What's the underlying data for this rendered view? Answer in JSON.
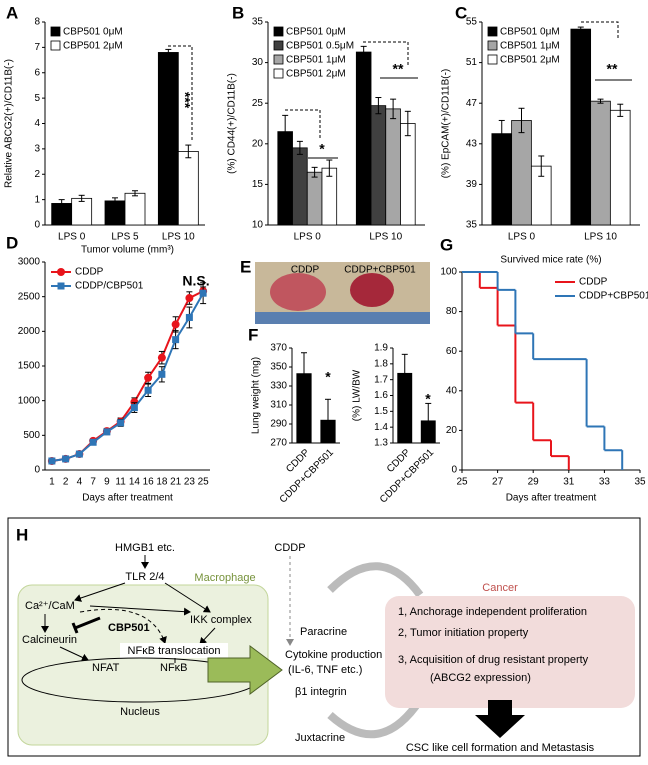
{
  "chart_data": [
    {
      "panel": "A",
      "type": "bar",
      "y_label": "Relative ABCG2(+)/CD11B(-)",
      "categories": [
        "LPS 0",
        "LPS 5",
        "LPS 10"
      ],
      "series": [
        {
          "name": "CBP501 0μM",
          "color": "#000000",
          "values": [
            0.85,
            0.95,
            6.8
          ],
          "errors": [
            0.15,
            0.12,
            0.12
          ]
        },
        {
          "name": "CBP501 2μM",
          "color": "#ffffff",
          "values": [
            1.05,
            1.25,
            2.9
          ],
          "errors": [
            0.12,
            0.1,
            0.25
          ]
        }
      ],
      "ylim": [
        0,
        8
      ],
      "yticks": [
        0,
        1,
        2,
        3,
        4,
        5,
        6,
        7,
        8
      ],
      "legend": "upper left",
      "annotations": [
        "***"
      ]
    },
    {
      "panel": "B",
      "type": "bar",
      "y_label": "(%) CD44(+)/CD11B(-)",
      "categories": [
        "LPS 0",
        "LPS 10"
      ],
      "series": [
        {
          "name": "CBP501 0μM",
          "color": "#000000",
          "values": [
            21.5,
            31.3
          ],
          "errors": [
            2.0,
            0.7
          ]
        },
        {
          "name": "CBP501 0.5μM",
          "color": "#404040",
          "values": [
            19.5,
            24.7
          ],
          "errors": [
            0.8,
            1.0
          ]
        },
        {
          "name": "CBP501 1μM",
          "color": "#a6a6a6",
          "values": [
            16.5,
            24.3
          ],
          "errors": [
            0.6,
            1.2
          ]
        },
        {
          "name": "CBP501 2μM",
          "color": "#ffffff",
          "values": [
            17.0,
            22.5
          ],
          "errors": [
            1.0,
            1.5
          ]
        }
      ],
      "ylim": [
        10,
        35
      ],
      "yticks": [
        10,
        15,
        20,
        25,
        30,
        35
      ],
      "legend": "upper left",
      "annotations": [
        "*",
        "**"
      ]
    },
    {
      "panel": "C",
      "type": "bar",
      "y_label": "(%) EpCAM(+)/CD11B(-)",
      "categories": [
        "LPS 0",
        "LPS 10"
      ],
      "series": [
        {
          "name": "CBP501 0μM",
          "color": "#000000",
          "values": [
            44.0,
            54.3
          ],
          "errors": [
            1.3,
            0.2
          ]
        },
        {
          "name": "CBP501 1μM",
          "color": "#a6a6a6",
          "values": [
            45.3,
            47.2
          ],
          "errors": [
            1.2,
            0.2
          ]
        },
        {
          "name": "CBP501 2μM",
          "color": "#ffffff",
          "values": [
            40.8,
            46.3
          ],
          "errors": [
            1.0,
            0.6
          ]
        }
      ],
      "ylim": [
        35,
        55
      ],
      "yticks": [
        35,
        39,
        43,
        47,
        51,
        55
      ],
      "legend": "upper left",
      "annotations": [
        "**"
      ]
    },
    {
      "panel": "D",
      "type": "line",
      "title": "Tumor volume (mm³)",
      "x_label": "Days after treatment",
      "categories": [
        "1",
        "2",
        "4",
        "7",
        "9",
        "11",
        "14",
        "16",
        "18",
        "21",
        "23",
        "25"
      ],
      "series": [
        {
          "name": "CDDP",
          "color": "#e8141b",
          "marker": "circle",
          "values": [
            130,
            160,
            230,
            420,
            560,
            700,
            980,
            1330,
            1620,
            2100,
            2480,
            2580
          ],
          "errors": [
            10,
            15,
            20,
            30,
            40,
            50,
            60,
            80,
            90,
            110,
            90,
            60
          ]
        },
        {
          "name": "CDDP/CBP501",
          "color": "#2e75b6",
          "marker": "square",
          "values": [
            130,
            160,
            230,
            400,
            550,
            680,
            900,
            1150,
            1380,
            1880,
            2200,
            2550
          ],
          "errors": [
            10,
            15,
            20,
            30,
            40,
            50,
            70,
            90,
            110,
            130,
            150,
            150
          ]
        }
      ],
      "ylim": [
        0,
        3000
      ],
      "yticks": [
        0,
        500,
        1000,
        1500,
        2000,
        2500,
        3000
      ],
      "legend": "upper left",
      "annotations": [
        "N.S."
      ]
    },
    {
      "panel": "F",
      "type": "bar",
      "y_label": "Lung weight (mg)",
      "categories": [
        "CDDP",
        "CDDP+CBP501"
      ],
      "series": [
        {
          "color": "#000000",
          "values": [
            343,
            294
          ],
          "errors": [
            22,
            22
          ]
        }
      ],
      "ylim": [
        270,
        370
      ],
      "yticks": [
        270,
        290,
        310,
        330,
        350,
        370
      ],
      "annotations": [
        "*"
      ]
    },
    {
      "type": "bar",
      "y_label": "(%) LW/BW",
      "categories": [
        "CDDP",
        "CDDP+CBP501"
      ],
      "series": [
        {
          "color": "#000000",
          "values": [
            1.74,
            1.44
          ],
          "errors": [
            0.12,
            0.11
          ]
        }
      ],
      "ylim": [
        1.3,
        1.9
      ],
      "yticks": [
        1.3,
        1.4,
        1.5,
        1.6,
        1.7,
        1.8,
        1.9
      ],
      "annotations": [
        "*"
      ]
    },
    {
      "panel": "G",
      "type": "line",
      "step": true,
      "title": "Survived mice rate (%)",
      "x_label": "Days after treatment",
      "xlim": [
        25,
        35
      ],
      "xticks": [
        25,
        27,
        29,
        31,
        33,
        35
      ],
      "series": [
        {
          "name": "CDDP",
          "color": "#e8141b",
          "x": [
            25,
            26,
            27,
            28,
            29,
            30,
            31
          ],
          "values": [
            100,
            92,
            73,
            34,
            15,
            7,
            0
          ]
        },
        {
          "name": "CDDP+CBP501",
          "color": "#2e75b6",
          "x": [
            25,
            27,
            28,
            29,
            32,
            33,
            34
          ],
          "values": [
            100,
            91,
            69,
            56,
            22,
            10,
            0
          ]
        }
      ],
      "ylim": [
        0,
        100
      ],
      "yticks": [
        0,
        20,
        40,
        60,
        80,
        100
      ],
      "legend": "upper right"
    }
  ],
  "photo": {
    "panel": "E",
    "labels": [
      "CDDP",
      "CDDP+CBP501"
    ]
  },
  "diagram": {
    "panel": "H",
    "hmgb1": "HMGB1 etc.",
    "tlr": "TLR 2/4",
    "macrophage": "Macrophage",
    "cacam": "Ca²⁺/CaM",
    "cbp501": "CBP501",
    "ikk": "IKK complex",
    "calcineurin": "Calcineurin",
    "translocation": "NFκB translocation",
    "nfat": "NFAT",
    "nfkb": "NFκB",
    "nucleus": "Nucleus",
    "cddp": "CDDP",
    "paracrine": "Paracrine",
    "cytokine": "Cytokine production",
    "cytokine_detail": "(IL-6, TNF etc.)",
    "integrin": "β1 integrin",
    "juxtacrine": "Juxtacrine",
    "cancer": "Cancer",
    "cancer_items": [
      "1, Anchorage independent proliferation",
      "2, Tumor initiation property",
      "3, Acquisition of drug resistant property",
      "(ABCG2 expression)"
    ],
    "outcome": "CSC like cell formation and Metastasis"
  }
}
